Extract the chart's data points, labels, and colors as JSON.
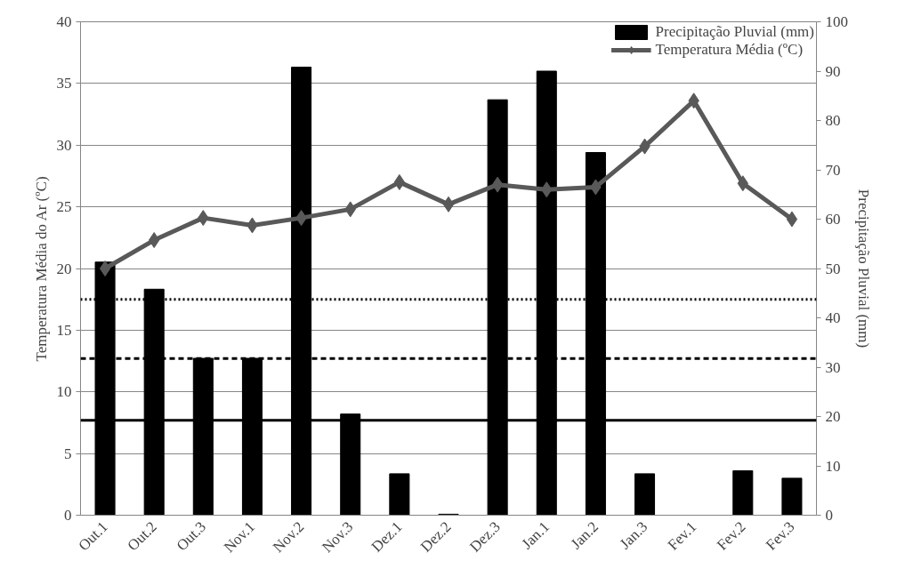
{
  "chart_data": {
    "type": "bar",
    "ylabel": "Temperatura Média do Ar (ºC)",
    "y2label": "Precipitação Pluvial (mm)",
    "categories": [
      "Out.1",
      "Out.2",
      "Out.3",
      "Nov.1",
      "Nov.2",
      "Nov.3",
      "Dez.1",
      "Dez.2",
      "Dez.3",
      "Jan.1",
      "Jan.2",
      "Jan.3",
      "Fev.1",
      "Fev.2",
      "Fev.3"
    ],
    "series": [
      {
        "name": "Precipitação Pluvial (mm)",
        "axis": "y2",
        "color": "#000000",
        "values": [
          51.3,
          45.8,
          31.8,
          31.8,
          90.8,
          20.5,
          8.4,
          0.2,
          84.2,
          90,
          73.5,
          8.4,
          0,
          9.0,
          7.5
        ]
      },
      {
        "name": "Temperatura Média (ºC)",
        "type": "line",
        "color": "#595959",
        "marker": "diamond",
        "line_style": "solid",
        "values": [
          20.0,
          22.3,
          24.1,
          23.5,
          24.1,
          24.8,
          27.0,
          25.2,
          26.8,
          26.4,
          26.6,
          29.9,
          33.6,
          26.9,
          24.0
        ]
      }
    ],
    "ref_lines": [
      {
        "axis": "y",
        "value": 17.5,
        "color": "#000000",
        "line_style": "dotted"
      },
      {
        "axis": "y",
        "value": 12.7,
        "color": "#000000",
        "line_style": "dashed"
      },
      {
        "axis": "y",
        "value": 7.7,
        "color": "#000000",
        "line_style": "solid"
      }
    ],
    "ylim": [
      0,
      40
    ],
    "yticks": [
      0,
      5,
      10,
      15,
      20,
      25,
      30,
      35,
      40
    ],
    "y2lim": [
      0,
      100
    ],
    "y2ticks": [
      0,
      10,
      20,
      30,
      40,
      50,
      60,
      70,
      80,
      90,
      100
    ],
    "grid": "y",
    "legend": "top right"
  }
}
